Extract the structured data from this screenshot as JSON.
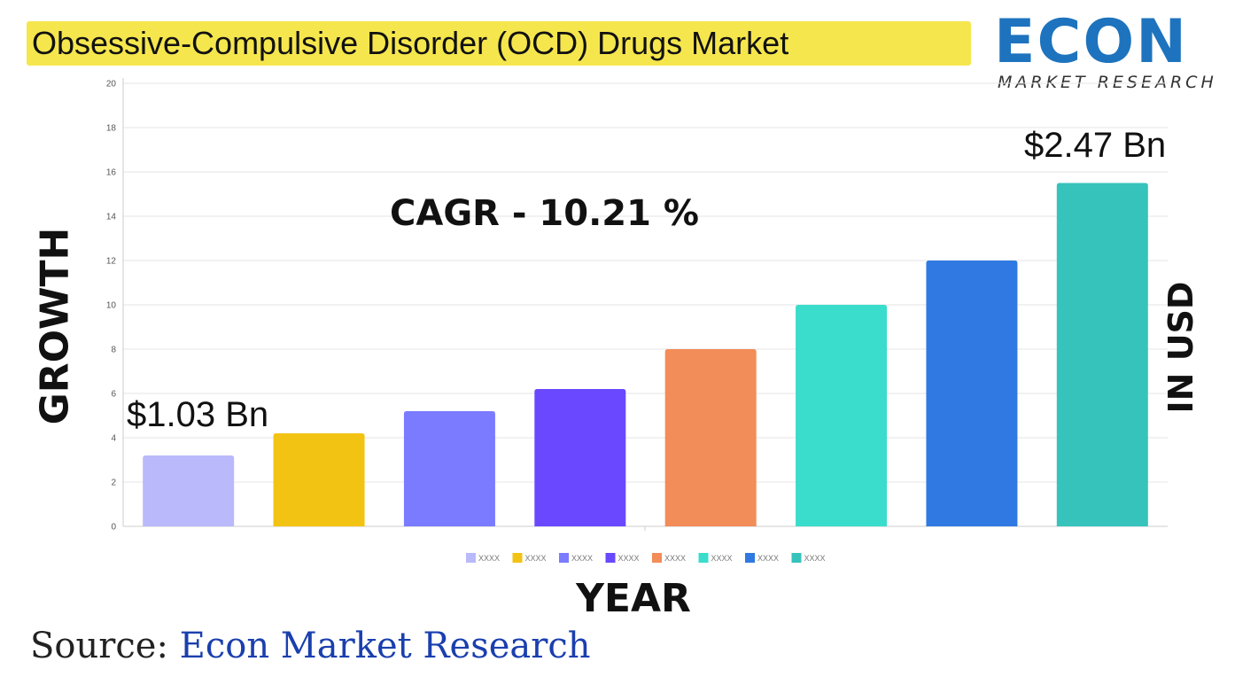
{
  "title": "Obsessive-Compulsive Disorder (OCD) Drugs Market",
  "logo": {
    "word": "ECON",
    "subtitle": "MARKET RESEARCH"
  },
  "source": {
    "prefix": "Source:",
    "name": " Econ Market Research"
  },
  "annotations": {
    "cagr": "CAGR  - 10.21 %",
    "start_value": "$1.03 Bn",
    "end_value": "$2.47 Bn"
  },
  "chart_data": {
    "type": "bar",
    "xlabel": "YEAR",
    "ylabel": "GROWTH",
    "y2label": "IN USD",
    "ylim": [
      0,
      20
    ],
    "yticks": [
      0,
      2,
      4,
      6,
      8,
      10,
      12,
      14,
      16,
      18,
      20
    ],
    "grid": true,
    "legend_position": "bottom",
    "categories": [
      "XXXX",
      "XXXX",
      "XXXX",
      "XXXX",
      "XXXX",
      "XXXX",
      "XXXX",
      "XXXX"
    ],
    "values": [
      3.2,
      4.2,
      5.2,
      6.2,
      8.0,
      10.0,
      12.0,
      15.5
    ],
    "colors": [
      "#b9b9fc",
      "#f3c313",
      "#7b7bff",
      "#6a48ff",
      "#f28c58",
      "#3adccb",
      "#3179e2",
      "#36c3bc"
    ]
  }
}
